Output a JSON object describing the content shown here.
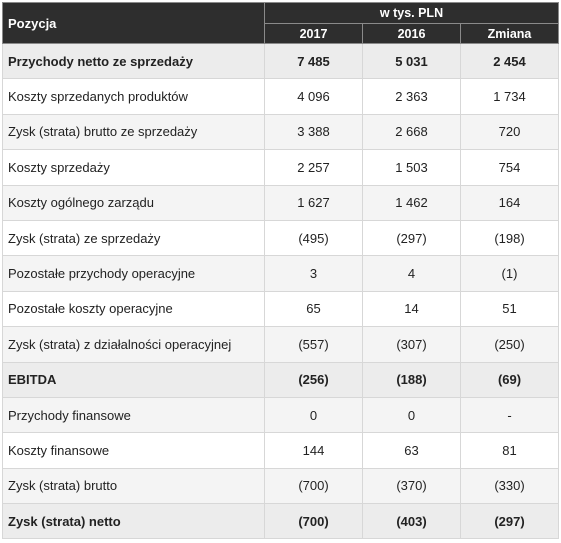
{
  "header": {
    "label": "Pozycja",
    "group": "w tys. PLN",
    "years": [
      "2017",
      "2016",
      "Zmiana"
    ]
  },
  "rows": [
    {
      "label": "Przychody netto ze sprzedaży",
      "v2017": "7 485",
      "v2016": "5 031",
      "change": "2 454",
      "bold": true
    },
    {
      "label": "Koszty sprzedanych produktów",
      "v2017": "4 096",
      "v2016": "2 363",
      "change": "1 734",
      "bold": false
    },
    {
      "label": "Zysk (strata) brutto ze sprzedaży",
      "v2017": "3 388",
      "v2016": "2 668",
      "change": "720",
      "bold": false
    },
    {
      "label": "Koszty sprzedaży",
      "v2017": "2 257",
      "v2016": "1 503",
      "change": "754",
      "bold": false
    },
    {
      "label": "Koszty ogólnego zarządu",
      "v2017": "1 627",
      "v2016": "1 462",
      "change": "164",
      "bold": false
    },
    {
      "label": "Zysk (strata) ze sprzedaży",
      "v2017": "(495)",
      "v2016": "(297)",
      "change": "(198)",
      "bold": false
    },
    {
      "label": "Pozostałe przychody operacyjne",
      "v2017": "3",
      "v2016": "4",
      "change": "(1)",
      "bold": false
    },
    {
      "label": "Pozostałe koszty operacyjne",
      "v2017": "65",
      "v2016": "14",
      "change": "51",
      "bold": false
    },
    {
      "label": "Zysk (strata) z działalności operacyjnej",
      "v2017": "(557)",
      "v2016": "(307)",
      "change": "(250)",
      "bold": false
    },
    {
      "label": "EBITDA",
      "v2017": "(256)",
      "v2016": "(188)",
      "change": "(69)",
      "bold": true
    },
    {
      "label": "Przychody finansowe",
      "v2017": "0",
      "v2016": "0",
      "change": "-",
      "bold": false
    },
    {
      "label": "Koszty finansowe",
      "v2017": "144",
      "v2016": "63",
      "change": "81",
      "bold": false
    },
    {
      "label": "Zysk (strata) brutto",
      "v2017": "(700)",
      "v2016": "(370)",
      "change": "(330)",
      "bold": false
    },
    {
      "label": "Zysk (strata) netto",
      "v2017": "(700)",
      "v2016": "(403)",
      "change": "(297)",
      "bold": true
    }
  ]
}
